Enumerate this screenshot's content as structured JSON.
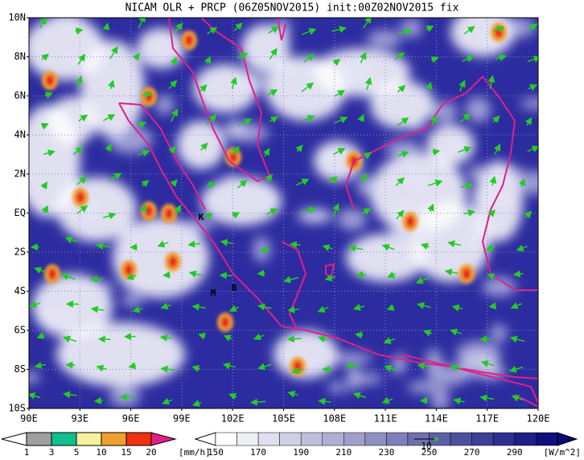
{
  "header": {
    "title": "NICAM OLR + PRCP (06Z05NOV2015) init:00Z02NOV2015 fix"
  },
  "map": {
    "lat_labels": [
      "10N",
      "8N",
      "6N",
      "4N",
      "2N",
      "EQ",
      "2S",
      "4S",
      "6S",
      "8S",
      "10S"
    ],
    "lon_labels": [
      "90E",
      "93E",
      "96E",
      "99E",
      "102E",
      "105E",
      "108E",
      "111E",
      "114E",
      "117E",
      "120E"
    ],
    "places": [
      "K",
      "M",
      "B"
    ]
  },
  "precip_legend": {
    "labels": [
      "1",
      "3",
      "5",
      "10",
      "15",
      "20"
    ],
    "unit": "[mm/h]"
  },
  "olr_legend": {
    "labels": [
      "150",
      "170",
      "190",
      "210",
      "230",
      "250",
      "270",
      "290"
    ],
    "unit": "[W/m^2]",
    "vector_label": "10"
  }
}
